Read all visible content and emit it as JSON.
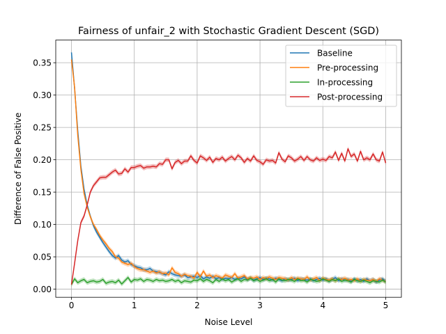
{
  "chart_data": {
    "type": "line",
    "title": "Fairness of unfair_2 with Stochastic Gradient Descent (SGD)",
    "xlabel": "Noise Level",
    "ylabel": "Difference of False Positive",
    "xlim": [
      -0.25,
      5.25
    ],
    "ylim": [
      -0.0125,
      0.385
    ],
    "xticks": [
      0,
      1,
      2,
      3,
      4,
      5
    ],
    "xtick_labels": [
      "0",
      "1",
      "2",
      "3",
      "4",
      "5"
    ],
    "yticks": [
      0.0,
      0.05,
      0.1,
      0.15,
      0.2,
      0.25,
      0.3,
      0.35
    ],
    "ytick_labels": [
      "0.00",
      "0.05",
      "0.10",
      "0.15",
      "0.20",
      "0.25",
      "0.30",
      "0.35"
    ],
    "grid": true,
    "legend_position": "top-right",
    "colors": {
      "Baseline": "#1f77b4",
      "Pre-processing": "#ff7f0e",
      "In-processing": "#2ca02c",
      "Post-processing": "#d62728"
    },
    "x": [
      0.0,
      0.05,
      0.1,
      0.15,
      0.2,
      0.25,
      0.3,
      0.35,
      0.4,
      0.45,
      0.5,
      0.55,
      0.6,
      0.65,
      0.7,
      0.75,
      0.8,
      0.85,
      0.9,
      0.95,
      1.0,
      1.05,
      1.1,
      1.15,
      1.2,
      1.25,
      1.3,
      1.35,
      1.4,
      1.45,
      1.5,
      1.55,
      1.6,
      1.65,
      1.7,
      1.75,
      1.8,
      1.85,
      1.9,
      1.95,
      2.0,
      2.05,
      2.1,
      2.15,
      2.2,
      2.25,
      2.3,
      2.35,
      2.4,
      2.45,
      2.5,
      2.55,
      2.6,
      2.65,
      2.7,
      2.75,
      2.8,
      2.85,
      2.9,
      2.95,
      3.0,
      3.05,
      3.1,
      3.15,
      3.2,
      3.25,
      3.3,
      3.35,
      3.4,
      3.45,
      3.5,
      3.55,
      3.6,
      3.65,
      3.7,
      3.75,
      3.8,
      3.85,
      3.9,
      3.95,
      4.0,
      4.05,
      4.1,
      4.15,
      4.2,
      4.25,
      4.3,
      4.35,
      4.4,
      4.45,
      4.5,
      4.55,
      4.6,
      4.65,
      4.7,
      4.75,
      4.8,
      4.85,
      4.9,
      4.95,
      5.0
    ],
    "series": [
      {
        "name": "Baseline",
        "values": [
          0.366,
          0.31,
          0.245,
          0.19,
          0.155,
          0.13,
          0.113,
          0.098,
          0.088,
          0.08,
          0.072,
          0.065,
          0.058,
          0.052,
          0.048,
          0.052,
          0.045,
          0.042,
          0.044,
          0.038,
          0.036,
          0.034,
          0.033,
          0.03,
          0.03,
          0.032,
          0.028,
          0.027,
          0.026,
          0.024,
          0.022,
          0.027,
          0.024,
          0.022,
          0.021,
          0.02,
          0.022,
          0.018,
          0.019,
          0.02,
          0.018,
          0.021,
          0.016,
          0.019,
          0.017,
          0.02,
          0.016,
          0.018,
          0.015,
          0.017,
          0.016,
          0.018,
          0.015,
          0.017,
          0.016,
          0.019,
          0.015,
          0.017,
          0.014,
          0.016,
          0.018,
          0.015,
          0.017,
          0.016,
          0.014,
          0.017,
          0.015,
          0.013,
          0.016,
          0.014,
          0.015,
          0.017,
          0.013,
          0.016,
          0.015,
          0.014,
          0.016,
          0.013,
          0.015,
          0.017,
          0.014,
          0.016,
          0.013,
          0.015,
          0.018,
          0.013,
          0.016,
          0.014,
          0.015,
          0.012,
          0.016,
          0.013,
          0.015,
          0.012,
          0.016,
          0.013,
          0.015,
          0.011,
          0.014,
          0.016,
          0.012
        ]
      },
      {
        "name": "Pre-processing",
        "values": [
          0.355,
          0.312,
          0.238,
          0.185,
          0.148,
          0.127,
          0.112,
          0.1,
          0.092,
          0.083,
          0.076,
          0.07,
          0.063,
          0.058,
          0.05,
          0.048,
          0.042,
          0.04,
          0.038,
          0.04,
          0.035,
          0.032,
          0.03,
          0.03,
          0.028,
          0.026,
          0.028,
          0.025,
          0.027,
          0.024,
          0.025,
          0.022,
          0.033,
          0.026,
          0.024,
          0.02,
          0.023,
          0.021,
          0.02,
          0.017,
          0.026,
          0.019,
          0.028,
          0.02,
          0.022,
          0.018,
          0.021,
          0.019,
          0.017,
          0.022,
          0.02,
          0.018,
          0.024,
          0.017,
          0.019,
          0.021,
          0.016,
          0.018,
          0.017,
          0.019,
          0.015,
          0.018,
          0.016,
          0.019,
          0.017,
          0.015,
          0.018,
          0.017,
          0.016,
          0.014,
          0.018,
          0.015,
          0.017,
          0.016,
          0.015,
          0.019,
          0.014,
          0.016,
          0.018,
          0.013,
          0.017,
          0.015,
          0.014,
          0.016,
          0.013,
          0.016,
          0.015,
          0.017,
          0.014,
          0.015,
          0.013,
          0.016,
          0.012,
          0.015,
          0.014,
          0.013,
          0.015,
          0.012,
          0.016,
          0.014,
          0.012
        ]
      },
      {
        "name": "In-processing",
        "values": [
          0.007,
          0.016,
          0.01,
          0.013,
          0.015,
          0.01,
          0.012,
          0.013,
          0.011,
          0.012,
          0.015,
          0.009,
          0.011,
          0.012,
          0.01,
          0.014,
          0.008,
          0.013,
          0.018,
          0.011,
          0.015,
          0.014,
          0.016,
          0.012,
          0.015,
          0.014,
          0.012,
          0.015,
          0.013,
          0.014,
          0.012,
          0.013,
          0.015,
          0.012,
          0.014,
          0.01,
          0.013,
          0.012,
          0.011,
          0.014,
          0.013,
          0.016,
          0.012,
          0.015,
          0.013,
          0.01,
          0.015,
          0.012,
          0.016,
          0.013,
          0.015,
          0.011,
          0.014,
          0.016,
          0.012,
          0.015,
          0.014,
          0.017,
          0.013,
          0.015,
          0.012,
          0.014,
          0.016,
          0.013,
          0.015,
          0.011,
          0.016,
          0.014,
          0.013,
          0.015,
          0.014,
          0.012,
          0.016,
          0.013,
          0.014,
          0.011,
          0.015,
          0.014,
          0.012,
          0.013,
          0.016,
          0.014,
          0.012,
          0.015,
          0.013,
          0.016,
          0.012,
          0.014,
          0.013,
          0.011,
          0.015,
          0.013,
          0.012,
          0.014,
          0.012,
          0.01,
          0.013,
          0.012,
          0.011,
          0.014,
          0.011
        ]
      },
      {
        "name": "Post-processing",
        "values": [
          0.007,
          0.04,
          0.075,
          0.103,
          0.113,
          0.13,
          0.15,
          0.16,
          0.166,
          0.172,
          0.173,
          0.173,
          0.177,
          0.181,
          0.184,
          0.178,
          0.179,
          0.186,
          0.181,
          0.188,
          0.188,
          0.19,
          0.191,
          0.187,
          0.189,
          0.189,
          0.19,
          0.189,
          0.194,
          0.193,
          0.2,
          0.2,
          0.186,
          0.196,
          0.199,
          0.194,
          0.198,
          0.198,
          0.206,
          0.199,
          0.195,
          0.206,
          0.203,
          0.199,
          0.204,
          0.196,
          0.202,
          0.2,
          0.204,
          0.198,
          0.202,
          0.205,
          0.2,
          0.207,
          0.203,
          0.196,
          0.202,
          0.198,
          0.206,
          0.199,
          0.197,
          0.193,
          0.2,
          0.198,
          0.199,
          0.195,
          0.211,
          0.201,
          0.197,
          0.206,
          0.203,
          0.198,
          0.201,
          0.205,
          0.199,
          0.205,
          0.2,
          0.198,
          0.203,
          0.199,
          0.201,
          0.199,
          0.205,
          0.203,
          0.212,
          0.199,
          0.21,
          0.198,
          0.217,
          0.205,
          0.209,
          0.198,
          0.213,
          0.2,
          0.203,
          0.2,
          0.209,
          0.2,
          0.198,
          0.212,
          0.195
        ]
      }
    ]
  }
}
